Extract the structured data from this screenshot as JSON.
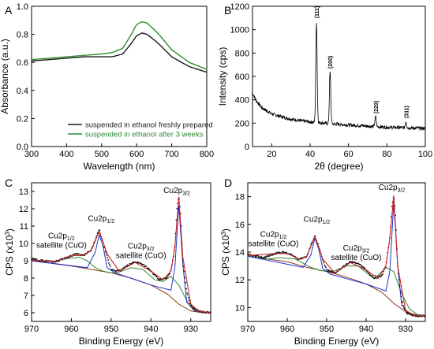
{
  "figure": {
    "panels": [
      {
        "letter": "A"
      },
      {
        "letter": "B"
      },
      {
        "letter": "C"
      },
      {
        "letter": "D"
      }
    ]
  },
  "chart_data": [
    {
      "panel": "A",
      "type": "line",
      "xlabel": "Wavelength (nm)",
      "ylabel": "Absorbance (a.u.)",
      "xlim": [
        300,
        800
      ],
      "ylim": [
        0,
        1.0
      ],
      "xticks": [
        300,
        400,
        500,
        600,
        700,
        800
      ],
      "yticks": [
        0.0,
        0.2,
        0.4,
        0.6,
        0.8,
        1.0
      ],
      "xtick_labels": [
        "300",
        "400",
        "500",
        "600",
        "700",
        "800"
      ],
      "ytick_labels": [
        "0.0",
        "0.2",
        "0.4",
        "0.6",
        "0.8",
        "1.0"
      ],
      "legend_position": "bottom-right",
      "colors": {
        "fresh": "#1a1a1a",
        "aged": "#2e8b2e"
      },
      "series": [
        {
          "name": "suspended in ethanol freshly prepared",
          "color": "#1a1a1a",
          "x": [
            300,
            350,
            400,
            450,
            500,
            530,
            560,
            580,
            600,
            615,
            630,
            660,
            700,
            750,
            800
          ],
          "y": [
            0.61,
            0.62,
            0.63,
            0.64,
            0.64,
            0.64,
            0.66,
            0.72,
            0.79,
            0.81,
            0.8,
            0.74,
            0.64,
            0.57,
            0.53
          ]
        },
        {
          "name": "suspended in ethanol after 3 weeks",
          "color": "#2e8b2e",
          "x": [
            300,
            350,
            400,
            450,
            500,
            530,
            560,
            580,
            600,
            615,
            630,
            660,
            700,
            750,
            800
          ],
          "y": [
            0.62,
            0.63,
            0.64,
            0.65,
            0.66,
            0.67,
            0.7,
            0.78,
            0.87,
            0.89,
            0.88,
            0.81,
            0.69,
            0.6,
            0.55
          ]
        }
      ]
    },
    {
      "panel": "B",
      "type": "line",
      "xlabel": "2θ (degree)",
      "ylabel": "Intensity (cps)",
      "xlim": [
        10,
        100
      ],
      "ylim": [
        0,
        1200
      ],
      "xticks": [
        20,
        40,
        60,
        80,
        100
      ],
      "yticks": [
        0,
        200,
        400,
        600,
        800,
        1000,
        1200
      ],
      "xtick_labels": [
        "20",
        "40",
        "60",
        "80",
        "100"
      ],
      "ytick_labels": [
        "0",
        "200",
        "400",
        "600",
        "800",
        "1000",
        "1200"
      ],
      "color": "#000000",
      "baseline": {
        "x": [
          10,
          12,
          15,
          20,
          25,
          30,
          35,
          40,
          45,
          50,
          60,
          70,
          80,
          90,
          100
        ],
        "y": [
          460,
          390,
          330,
          280,
          255,
          235,
          220,
          210,
          205,
          195,
          185,
          175,
          165,
          160,
          155
        ]
      },
      "peaks": [
        {
          "label": "(111)",
          "x": 43.3,
          "y": 1070
        },
        {
          "label": "(200)",
          "x": 50.4,
          "y": 640
        },
        {
          "label": "(220)",
          "x": 74.1,
          "y": 255
        },
        {
          "label": "(311)",
          "x": 89.9,
          "y": 215
        }
      ]
    },
    {
      "panel": "C",
      "type": "line",
      "xlabel": "Binding Energy (eV)",
      "ylabel": "CPS (x10³)",
      "xlim": [
        970,
        925
      ],
      "ylim": [
        5.5,
        13.5
      ],
      "xticks": [
        970,
        960,
        950,
        940,
        930
      ],
      "yticks": [
        6,
        7,
        8,
        9,
        10,
        11,
        12,
        13
      ],
      "xtick_labels": [
        "970",
        "960",
        "950",
        "940",
        "930"
      ],
      "ytick_labels": [
        "6",
        "7",
        "8",
        "9",
        "10",
        "11",
        "12",
        "13"
      ],
      "annotations": [
        {
          "main": "Cu2p",
          "sub": "1/2",
          "extra": "satellite (CuO)",
          "x": 962.5,
          "y": 10.3
        },
        {
          "main": "Cu2p",
          "sub": "1/2",
          "extra": "",
          "x": 952.5,
          "y": 11.3
        },
        {
          "main": "Cu2p",
          "sub": "3/2",
          "extra": "satellite (CuO)",
          "x": 942.5,
          "y": 9.7
        },
        {
          "main": "Cu2p",
          "sub": "3/2",
          "extra": "",
          "x": 933.5,
          "y": 12.9
        }
      ],
      "curves": {
        "data": {
          "color": "#111111",
          "x": [
            970,
            967,
            964,
            961,
            959,
            957,
            955,
            954,
            953,
            952,
            951,
            950,
            948,
            946,
            944,
            942,
            940,
            938,
            936,
            935,
            934,
            933.5,
            933,
            932.5,
            932,
            931,
            930,
            929,
            928,
            927,
            925
          ],
          "y": [
            9.1,
            9.0,
            8.95,
            9.2,
            9.4,
            9.3,
            9.6,
            10.2,
            10.8,
            10.0,
            9.2,
            8.5,
            8.4,
            8.7,
            8.95,
            8.8,
            8.4,
            7.9,
            8.0,
            8.4,
            9.8,
            12.0,
            12.7,
            11.6,
            9.0,
            7.2,
            6.4,
            6.2,
            6.1,
            6.05,
            6.0
          ]
        },
        "fit": {
          "color": "#cc2222",
          "x": [
            970,
            964,
            960,
            957,
            955,
            953,
            951,
            948,
            944,
            940,
            937,
            935,
            934,
            933,
            932,
            930,
            928,
            925
          ],
          "y": [
            9.05,
            8.95,
            9.3,
            9.3,
            9.6,
            10.7,
            9.4,
            8.4,
            8.9,
            8.4,
            7.9,
            8.4,
            9.8,
            12.7,
            9.2,
            6.5,
            6.1,
            6.0
          ]
        },
        "background": {
          "color": "#8b3a1a",
          "x": [
            970,
            960,
            955,
            950,
            945,
            940,
            936,
            933,
            930,
            927,
            925
          ],
          "y": [
            9.0,
            8.7,
            8.5,
            8.3,
            8.0,
            7.6,
            7.1,
            6.5,
            6.1,
            6.0,
            6.0
          ]
        },
        "component_green": {
          "color": "#2e8b2e",
          "x": [
            970,
            965,
            962,
            958,
            956,
            954,
            952,
            950,
            948,
            945,
            942,
            939,
            937,
            935,
            933,
            931,
            929,
            927,
            925
          ],
          "y": [
            9.0,
            8.95,
            9.1,
            9.2,
            9.0,
            8.6,
            8.4,
            8.3,
            8.35,
            8.6,
            8.5,
            7.9,
            7.8,
            8.1,
            7.6,
            6.7,
            6.2,
            6.05,
            6.0
          ]
        },
        "component_blue": {
          "color": "#1f2fd0",
          "x": [
            970,
            956,
            954,
            953,
            952,
            951,
            949,
            940,
            935,
            934,
            933,
            932,
            931,
            929,
            925
          ],
          "y": [
            9.0,
            8.6,
            9.5,
            10.5,
            9.8,
            8.6,
            8.3,
            7.6,
            7.3,
            8.6,
            12.2,
            8.8,
            6.6,
            6.1,
            6.0
          ]
        }
      }
    },
    {
      "panel": "D",
      "type": "line",
      "xlabel": "Binding Energy (eV)",
      "ylabel": "CPS (x10³)",
      "xlim": [
        970,
        925
      ],
      "ylim": [
        9.0,
        19.0
      ],
      "xticks": [
        970,
        960,
        950,
        940,
        930
      ],
      "yticks": [
        10,
        12,
        14,
        16,
        18
      ],
      "xtick_labels": [
        "970",
        "960",
        "950",
        "940",
        "930"
      ],
      "ytick_labels": [
        "10",
        "12",
        "14",
        "16",
        "18"
      ],
      "annotations": [
        {
          "main": "Cu2p",
          "sub": "1/2",
          "extra": "satellite (CuO)",
          "x": 963.5,
          "y": 15.1
        },
        {
          "main": "Cu2p",
          "sub": "1/2",
          "extra": "",
          "x": 952.5,
          "y": 16.2
        },
        {
          "main": "Cu2p",
          "sub": "3/2",
          "extra": "satellite (CuO)",
          "x": 942.5,
          "y": 14.1
        },
        {
          "main": "Cu2p",
          "sub": "3/2",
          "extra": "",
          "x": 933.5,
          "y": 18.5
        }
      ],
      "curves": {
        "data": {
          "color": "#111111",
          "x": [
            970,
            966,
            963,
            961,
            959,
            957,
            955,
            954,
            953,
            952,
            951,
            950,
            948,
            946,
            944,
            942,
            940,
            938,
            936,
            935,
            934,
            933.5,
            933,
            932.5,
            932,
            931,
            930,
            929,
            928,
            927,
            925
          ],
          "y": [
            13.8,
            13.6,
            13.9,
            14.0,
            13.8,
            13.5,
            13.7,
            14.5,
            15.2,
            14.4,
            13.4,
            12.7,
            12.5,
            12.9,
            13.3,
            13.2,
            12.7,
            12.1,
            12.3,
            13.0,
            15.0,
            17.2,
            18.1,
            16.5,
            12.8,
            10.5,
            9.7,
            9.5,
            9.45,
            9.4,
            9.4
          ]
        },
        "fit": {
          "color": "#cc2222",
          "x": [
            970,
            963,
            960,
            957,
            955,
            953,
            951,
            948,
            944,
            940,
            937,
            935,
            934,
            933,
            932,
            930,
            928,
            925
          ],
          "y": [
            13.75,
            13.9,
            13.9,
            13.5,
            13.7,
            15.1,
            13.5,
            12.5,
            13.25,
            12.7,
            12.1,
            13.0,
            15.0,
            18.1,
            13.0,
            9.8,
            9.45,
            9.4
          ]
        },
        "background": {
          "color": "#8b3a1a",
          "x": [
            970,
            960,
            955,
            950,
            945,
            940,
            936,
            933,
            930,
            927,
            925
          ],
          "y": [
            13.7,
            13.3,
            12.9,
            12.6,
            12.2,
            11.7,
            11.1,
            10.3,
            9.7,
            9.45,
            9.4
          ]
        },
        "component_green": {
          "color": "#2e8b2e",
          "x": [
            970,
            965,
            962,
            958,
            956,
            954,
            952,
            950,
            948,
            945,
            942,
            939,
            937,
            935,
            933,
            931,
            929,
            927,
            925
          ],
          "y": [
            13.7,
            13.5,
            13.6,
            13.5,
            13.2,
            12.9,
            12.7,
            12.6,
            12.65,
            13.0,
            13.0,
            12.3,
            12.3,
            12.9,
            12.6,
            11.0,
            9.9,
            9.5,
            9.4
          ]
        },
        "component_blue": {
          "color": "#1f2fd0",
          "x": [
            970,
            956,
            954,
            953,
            952,
            951,
            949,
            940,
            935,
            934,
            933,
            932,
            931,
            929,
            925
          ],
          "y": [
            13.7,
            12.9,
            13.8,
            15.0,
            14.2,
            12.8,
            12.4,
            11.7,
            11.2,
            12.6,
            17.6,
            13.0,
            10.2,
            9.5,
            9.4
          ]
        }
      }
    }
  ]
}
